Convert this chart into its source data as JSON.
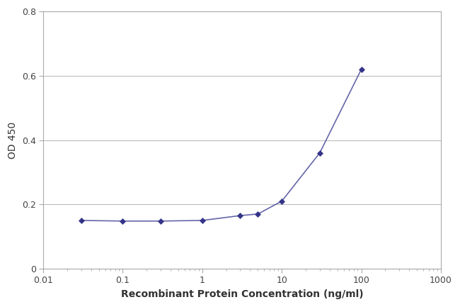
{
  "x": [
    0.03,
    0.1,
    0.3,
    1,
    3,
    5,
    10,
    30,
    100
  ],
  "y": [
    0.15,
    0.148,
    0.148,
    0.15,
    0.165,
    0.17,
    0.21,
    0.36,
    0.62
  ],
  "line_color": "#6666aa",
  "marker_color": "#333388",
  "marker_style": "D",
  "marker_size": 4,
  "xlabel": "Recombinant Protein Concentration (ng/ml)",
  "ylabel": "OD 450",
  "xlim_log": [
    0.01,
    1000
  ],
  "ylim": [
    0,
    0.8
  ],
  "yticks": [
    0,
    0.2,
    0.4,
    0.6,
    0.8
  ],
  "xtick_values": [
    0.01,
    0.1,
    1,
    10,
    100,
    1000
  ],
  "background_color": "#ffffff",
  "plot_bg_color": "#ffffff",
  "grid_color": "#bbbbbb",
  "axis_fontsize": 10,
  "tick_fontsize": 9,
  "label_fontsize": 10
}
